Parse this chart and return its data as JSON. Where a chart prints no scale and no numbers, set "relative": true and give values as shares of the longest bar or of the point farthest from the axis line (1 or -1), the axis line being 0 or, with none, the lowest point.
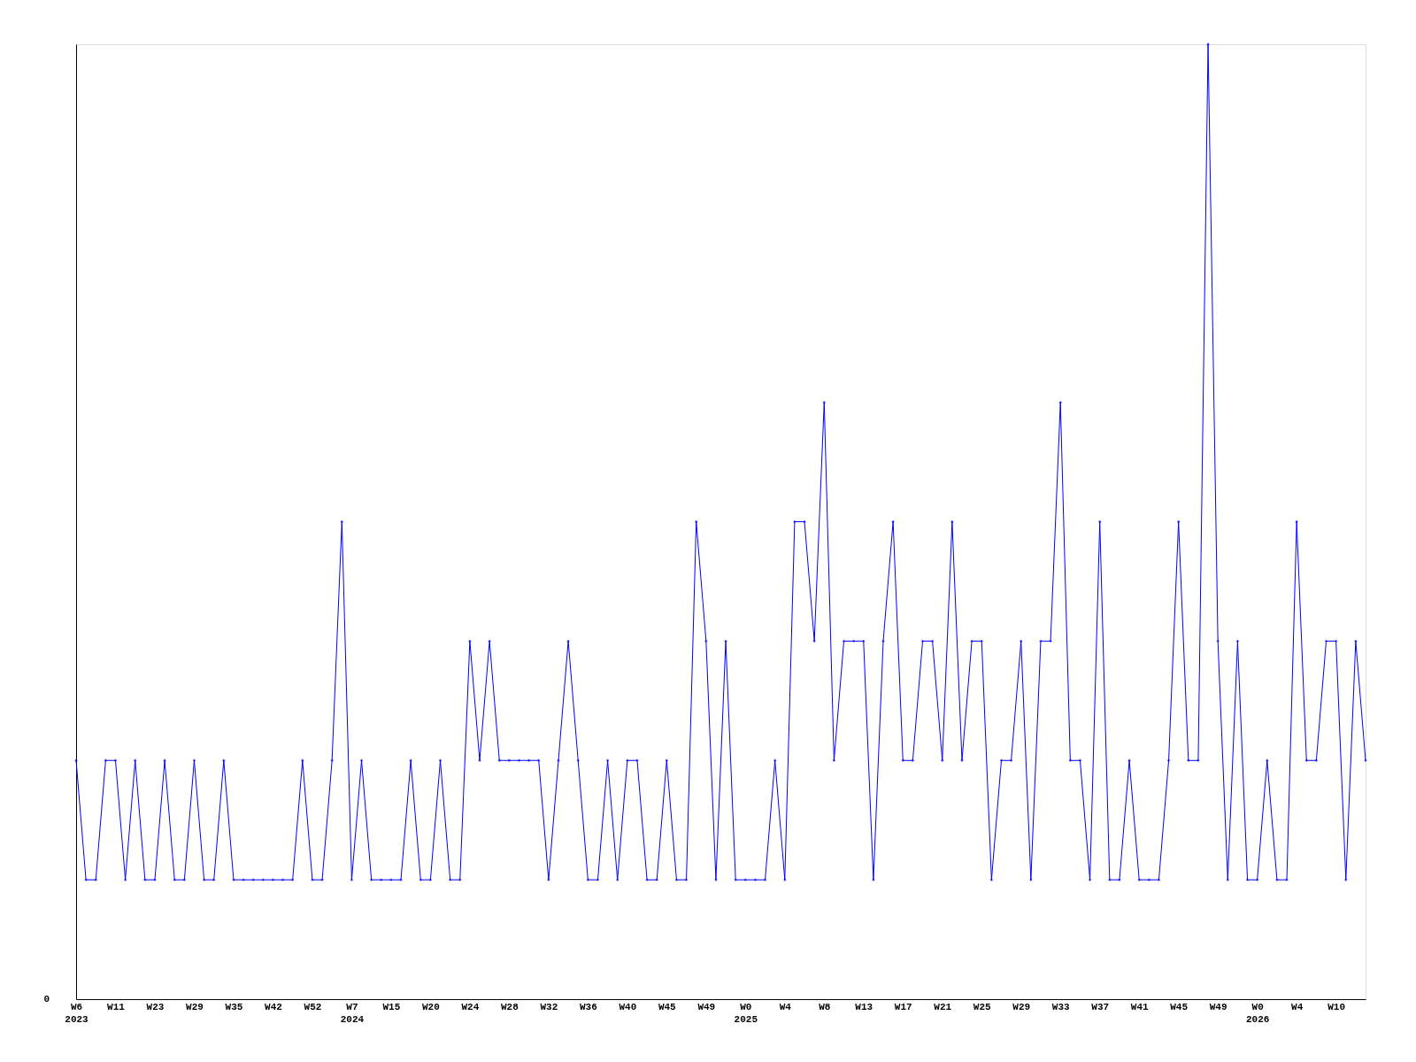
{
  "chart_data": {
    "type": "line",
    "relative": true,
    "marker": "diamond",
    "line_style": "solid",
    "grid": false,
    "legend": false,
    "annotations": [
      "0"
    ],
    "categories": [
      "W6\n2023",
      null,
      null,
      null,
      "W11",
      null,
      null,
      null,
      "W23",
      null,
      null,
      null,
      "W29",
      null,
      null,
      null,
      "W35",
      null,
      null,
      null,
      "W42",
      null,
      null,
      null,
      "W52",
      null,
      null,
      null,
      "W7\n2024",
      null,
      null,
      null,
      "W15",
      null,
      null,
      null,
      "W20",
      null,
      null,
      null,
      "W24",
      null,
      null,
      null,
      "W28",
      null,
      null,
      null,
      "W32",
      null,
      null,
      null,
      "W36",
      null,
      null,
      null,
      "W40",
      null,
      null,
      null,
      "W45",
      null,
      null,
      null,
      "W49",
      null,
      null,
      null,
      "W0\n2025",
      null,
      null,
      null,
      "W4",
      null,
      null,
      null,
      "W8",
      null,
      null,
      null,
      "W13",
      null,
      null,
      null,
      "W17",
      null,
      null,
      null,
      "W21",
      null,
      null,
      null,
      "W25",
      null,
      null,
      null,
      "W29",
      null,
      null,
      null,
      "W33",
      null,
      null,
      null,
      "W37",
      null,
      null,
      null,
      "W41",
      null,
      null,
      null,
      "W45",
      null,
      null,
      null,
      "W49",
      null,
      null,
      null,
      "W0\n2026",
      null,
      null,
      null,
      "W4",
      null,
      null,
      null,
      "W10",
      null,
      null,
      null
    ],
    "series": [
      {
        "color": "#0000ff",
        "values": [
          0.25,
          0.125,
          0.125,
          0.25,
          0.25,
          0.125,
          0.25,
          0.125,
          0.125,
          0.25,
          0.125,
          0.125,
          0.25,
          0.125,
          0.125,
          0.25,
          0.125,
          0.125,
          0.125,
          0.125,
          0.125,
          0.125,
          0.125,
          0.25,
          0.125,
          0.125,
          0.25,
          0.5,
          0.125,
          0.25,
          0.125,
          0.125,
          0.125,
          0.125,
          0.25,
          0.125,
          0.125,
          0.25,
          0.125,
          0.125,
          0.375,
          0.25,
          0.375,
          0.25,
          0.25,
          0.25,
          0.25,
          0.25,
          0.125,
          0.25,
          0.375,
          0.25,
          0.125,
          0.125,
          0.25,
          0.125,
          0.25,
          0.25,
          0.125,
          0.125,
          0.25,
          0.125,
          0.125,
          0.5,
          0.375,
          0.125,
          0.375,
          0.125,
          0.125,
          0.125,
          0.125,
          0.25,
          0.125,
          0.5,
          0.5,
          0.375,
          0.625,
          0.25,
          0.375,
          0.375,
          0.375,
          0.125,
          0.375,
          0.5,
          0.25,
          0.25,
          0.375,
          0.375,
          0.25,
          0.5,
          0.25,
          0.375,
          0.375,
          0.125,
          0.25,
          0.25,
          0.375,
          0.125,
          0.375,
          0.375,
          0.625,
          0.25,
          0.25,
          0.125,
          0.5,
          0.125,
          0.125,
          0.25,
          0.125,
          0.125,
          0.125,
          0.25,
          0.5,
          0.25,
          0.25,
          1,
          0.375,
          0.125,
          0.375,
          0.125,
          0.125,
          0.25,
          0.125,
          0.125,
          0.5,
          0.25,
          0.25,
          0.375,
          0.375,
          0.125,
          0.375,
          0.25
        ]
      }
    ]
  }
}
